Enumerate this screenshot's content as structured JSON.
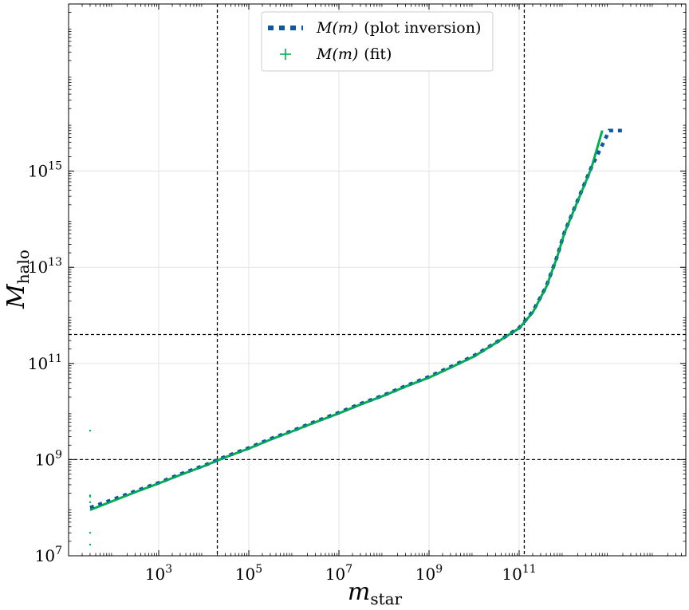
{
  "chart_data": {
    "type": "line",
    "x_scale": "log",
    "y_scale": "log",
    "xlim": [
      10,
      500000000000000
    ],
    "ylim": [
      10000000,
      3000000000000000000
    ],
    "xlabel": {
      "symbol": "m",
      "subscript": "star"
    },
    "ylabel": {
      "symbol": "M",
      "subscript": "halo"
    },
    "xticks": [
      {
        "base": "10",
        "exp": "3",
        "value": 1000
      },
      {
        "base": "10",
        "exp": "5",
        "value": 100000
      },
      {
        "base": "10",
        "exp": "7",
        "value": 10000000
      },
      {
        "base": "10",
        "exp": "9",
        "value": 1000000000
      },
      {
        "base": "10",
        "exp": "11",
        "value": 100000000000
      }
    ],
    "yticks": [
      {
        "base": "10",
        "exp": "7",
        "value": 10000000
      },
      {
        "base": "10",
        "exp": "9",
        "value": 1000000000
      },
      {
        "base": "10",
        "exp": "11",
        "value": 100000000000
      },
      {
        "base": "10",
        "exp": "13",
        "value": 10000000000000
      },
      {
        "base": "10",
        "exp": "15",
        "value": 1000000000000000
      }
    ],
    "grid": true,
    "legend_position": "top-center",
    "reference_lines": {
      "vertical_x": [
        20000,
        130000000000
      ],
      "horizontal_y": [
        1000000000,
        400000000000
      ]
    },
    "series": [
      {
        "name_math": "M(m)",
        "name_text": "(plot inversion)",
        "style": "dotted-thick",
        "color": "#1057a0",
        "x": [
          30,
          100,
          300,
          1000,
          3000,
          10000,
          30000,
          100000,
          300000,
          1000000,
          3000000,
          10000000,
          30000000,
          100000000,
          300000000,
          1000000000,
          3000000000,
          10000000000,
          30000000000,
          100000000000,
          200000000000,
          400000000000,
          700000000000,
          1000000000000,
          2000000000000,
          4000000000000,
          7000000000000,
          10000000000000,
          20000000000000
        ],
        "y": [
          100000000,
          150000000,
          220000000,
          330000000,
          500000000,
          750000000,
          1150000000,
          1750000000,
          2700000000,
          4100000000,
          6200000000,
          9500000000,
          14500000000,
          22000000000,
          34000000000,
          53000000000,
          85000000000,
          145000000000,
          270000000000,
          550000000000,
          1200000000000,
          4000000000000,
          17000000000000,
          52000000000000,
          250000000000000,
          1200000000000000,
          3500000000000000,
          7000000000000000,
          7000000000000000
        ]
      },
      {
        "name_math": "M(m)",
        "name_text": "(fit)",
        "style": "solid-thin",
        "color": "#00b050",
        "x": [
          30,
          100,
          300,
          1000,
          3000,
          10000,
          30000,
          100000,
          300000,
          1000000,
          3000000,
          10000000,
          30000000,
          100000000,
          300000000,
          1000000000,
          3000000000,
          10000000000,
          30000000000,
          100000000000,
          200000000000,
          400000000000,
          700000000000,
          1000000000000,
          2000000000000,
          4000000000000,
          7000000000000
        ],
        "y": [
          90000000,
          140000000,
          210000000,
          320000000,
          480000000,
          730000000,
          1120000000,
          1700000000,
          2600000000,
          4000000000,
          6000000000,
          9200000000,
          14000000000,
          21500000000,
          33000000000,
          51000000000,
          82000000000,
          140000000000,
          265000000000,
          540000000000,
          1150000000000,
          3900000000000,
          16500000000000,
          50000000000000,
          240000000000000,
          1150000000000000,
          7000000000000000
        ]
      },
      {
        "name": "scatter-outliers",
        "style": "markers",
        "color": "#00b050",
        "x": [
          30,
          30,
          30,
          30,
          30,
          30
        ],
        "y": [
          4000000000,
          180000000,
          170000000,
          130000000,
          30000000,
          17000000
        ]
      }
    ]
  }
}
